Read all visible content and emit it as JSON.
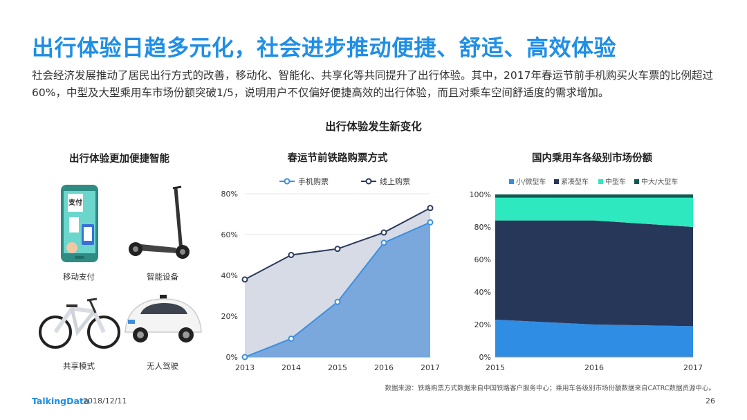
{
  "title": "出行体验日趋多元化，社会进步推动便捷、舒适、高效体验",
  "intro": "社会经济发展推动了居民出行方式的改善，移动化、智能化、共享化等共同提升了出行体验。其中，2017年春运节前手机购买火车票的比例超过60%，中型及大型乘用车市场份额突破1/5，说明用户不仅偏好便捷高效的出行体验，而且对乘车空间舒适度的需求增加。",
  "main_heading": "出行体验发生新变化",
  "left_panel": {
    "title": "出行体验更加便捷智能",
    "items": [
      {
        "label": "移动支付",
        "icon": "mobile-payment-icon",
        "phone_text": "支付"
      },
      {
        "label": "智能设备",
        "icon": "electric-scooter-icon"
      },
      {
        "label": "共享模式",
        "icon": "shared-bicycle-icon"
      },
      {
        "label": "无人驾驶",
        "icon": "self-driving-car-icon"
      }
    ]
  },
  "footer": {
    "logo": "TalkingData",
    "date": "2018/12/11",
    "page": "26",
    "source": "数据来源：铁路购票方式数据来自中国铁路客户服务中心；乘用车各级别市场份额数据来自CATRC数据资源中心。"
  },
  "chart_data": [
    {
      "type": "area",
      "title": "春运节前铁路购票方式",
      "x": [
        "2013",
        "2014",
        "2015",
        "2016",
        "2017"
      ],
      "ylim": [
        0,
        80
      ],
      "yticks": [
        "0%",
        "20%",
        "40%",
        "60%",
        "80%"
      ],
      "legend_position": "top",
      "series": [
        {
          "name": "手机购票",
          "values": [
            0,
            9,
            27,
            56,
            66
          ],
          "color": "#3b8fe0"
        },
        {
          "name": "线上购票",
          "values": [
            38,
            50,
            53,
            61,
            73
          ],
          "color": "#2b3a5c"
        }
      ]
    },
    {
      "type": "area",
      "stacked": true,
      "title": "国内乘用车各级别市场份额",
      "x": [
        "2015",
        "2016",
        "2017"
      ],
      "ylim": [
        0,
        100
      ],
      "yticks": [
        "0%",
        "20%",
        "40%",
        "60%",
        "80%",
        "100%"
      ],
      "legend_position": "top",
      "series": [
        {
          "name": "小/微型车",
          "values": [
            23,
            20,
            19
          ],
          "color": "#2f8de4"
        },
        {
          "name": "紧凑型车",
          "values": [
            61,
            64,
            61
          ],
          "color": "#27375a"
        },
        {
          "name": "中型车",
          "values": [
            14,
            14,
            18
          ],
          "color": "#2ee8c0"
        },
        {
          "name": "中大/大型车",
          "values": [
            2,
            2,
            2
          ],
          "color": "#0e5a52"
        }
      ]
    }
  ]
}
